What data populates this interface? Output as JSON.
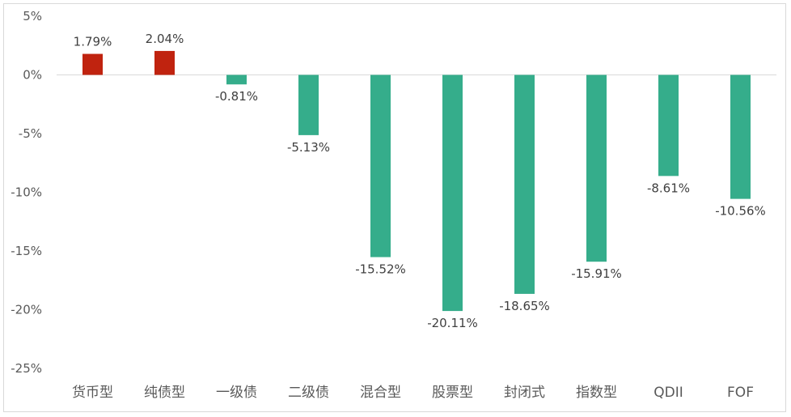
{
  "chart_data": {
    "type": "bar",
    "title": "",
    "xlabel": "",
    "ylabel": "",
    "categories": [
      "货币型",
      "纯债型",
      "一级债",
      "二级债",
      "混合型",
      "股票型",
      "封闭式",
      "指数型",
      "QDII",
      "FOF"
    ],
    "values": [
      1.79,
      2.04,
      -0.81,
      -5.13,
      -15.52,
      -20.11,
      -18.65,
      -15.91,
      -8.61,
      -10.56
    ],
    "data_labels": [
      "1.79%",
      "2.04%",
      "-0.81%",
      "-5.13%",
      "-15.52%",
      "-20.11%",
      "-18.65%",
      "-15.91%",
      "-8.61%",
      "-10.56%"
    ],
    "ylim": [
      -25,
      5
    ],
    "yticks": [
      5,
      0,
      -5,
      -10,
      -15,
      -20,
      -25
    ],
    "ytick_labels": [
      "5%",
      "0%",
      "-5%",
      "-10%",
      "-15%",
      "-20%",
      "-25%"
    ],
    "grid": false,
    "legend": "none",
    "colors": {
      "positive": "#c0230f",
      "negative": "#35ad8b",
      "zero_line": "#d9d9d9"
    }
  }
}
